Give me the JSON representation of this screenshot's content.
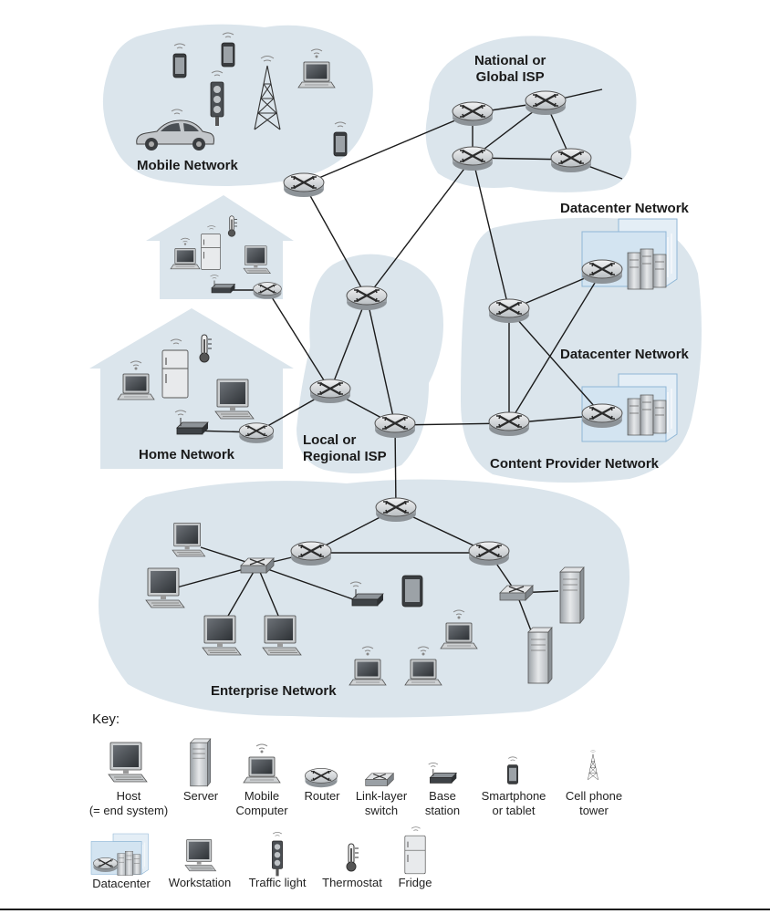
{
  "regions": {
    "mobile": "Mobile Network",
    "global_isp_line1": "National or",
    "global_isp_line2": "Global ISP",
    "datacenter_1": "Datacenter Network",
    "datacenter_2": "Datacenter Network",
    "home": "Home Network",
    "regional_isp_line1": "Local or",
    "regional_isp_line2": "Regional ISP",
    "content_provider": "Content Provider Network",
    "enterprise": "Enterprise Network"
  },
  "key": {
    "title": "Key:",
    "items": [
      {
        "line1": "Host",
        "line2": "(= end system)",
        "icon": "host-icon"
      },
      {
        "line1": "Server",
        "line2": "",
        "icon": "server-icon"
      },
      {
        "line1": "Mobile",
        "line2": "Computer",
        "icon": "laptop-icon"
      },
      {
        "line1": "Router",
        "line2": "",
        "icon": "router-icon"
      },
      {
        "line1": "Link-layer",
        "line2": "switch",
        "icon": "switch-icon"
      },
      {
        "line1": "Base",
        "line2": "station",
        "icon": "base-station-icon"
      },
      {
        "line1": "Smartphone",
        "line2": "or tablet",
        "icon": "smartphone-icon"
      },
      {
        "line1": "Cell phone",
        "line2": "tower",
        "icon": "cell-tower-icon"
      },
      {
        "line1": "Datacenter",
        "line2": "",
        "icon": "datacenter-icon"
      },
      {
        "line1": "Workstation",
        "line2": "",
        "icon": "workstation-icon"
      },
      {
        "line1": "Traffic light",
        "line2": "",
        "icon": "traffic-light-icon"
      },
      {
        "line1": "Thermostat",
        "line2": "",
        "icon": "thermostat-icon"
      },
      {
        "line1": "Fridge",
        "line2": "",
        "icon": "fridge-icon"
      }
    ]
  },
  "colors": {
    "cloud": "#dbe5ec",
    "datacenter_panel": "#d3e4f1",
    "datacenter_border": "#8fb6d6",
    "router_body": "#cfd3d6",
    "link": "#1a1a1a"
  }
}
